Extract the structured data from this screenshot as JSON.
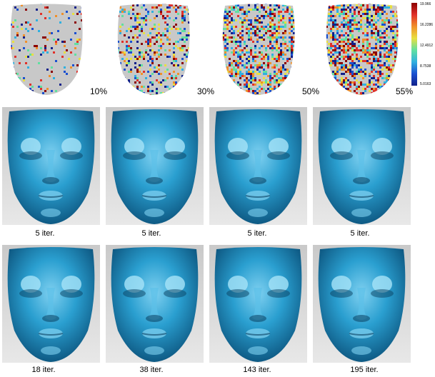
{
  "noise_row": {
    "percentages": [
      "10%",
      "30%",
      "50%",
      "55%"
    ],
    "densities": [
      0.1,
      0.3,
      0.5,
      0.55
    ]
  },
  "colorbar": {
    "labels": [
      "19.966",
      "16.2286",
      "12.4912",
      "8.7538",
      "5.0163"
    ],
    "colors": [
      "#8b0000",
      "#e0302a",
      "#f0902a",
      "#e8e040",
      "#60e0a0",
      "#30b0e0",
      "#1a50d0",
      "#10208a"
    ]
  },
  "row2": {
    "labels": [
      "5 iter.",
      "5 iter.",
      "5 iter.",
      "5 iter."
    ]
  },
  "row3": {
    "labels": [
      "18 iter.",
      "38 iter.",
      "143 iter.",
      "195 iter."
    ]
  },
  "face_color": "#2a9fd0"
}
